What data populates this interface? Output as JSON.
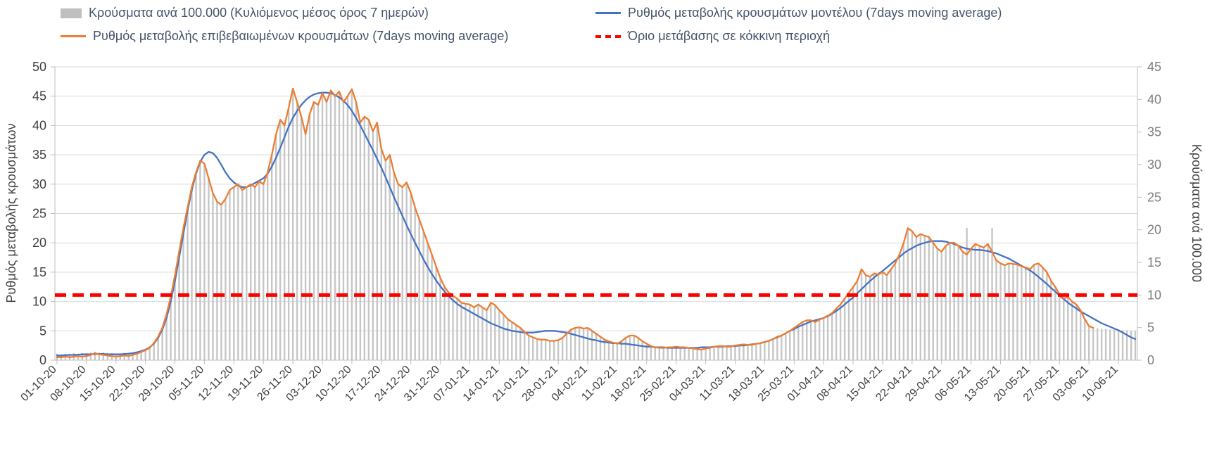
{
  "page": {
    "background": "#ffffff"
  },
  "legend": {
    "items": [
      {
        "label": "Κρούσματα ανά 100.000 (Κυλιόμενος μέσος όρος 7 ημερών)",
        "swatch": "bar",
        "color": "#bfbfbf"
      },
      {
        "label": "Ρυθμός μεταβολής κρουσμάτων μοντέλου (7days moving average)",
        "swatch": "line",
        "color": "#4472c4"
      },
      {
        "label": "Ρυθμός μεταβολής επιβεβαιωμένων κρουσμάτων (7days moving average)",
        "swatch": "line",
        "color": "#ed7d31"
      },
      {
        "label": "Όριο μετάβασης σε κόκκινη περιοχή",
        "swatch": "dashed-line",
        "color": "#ff0000"
      }
    ]
  },
  "chart_data": {
    "type": "combo",
    "grid": true,
    "legend_position": "top",
    "x_start_date": "01-10-20",
    "x_frequency": "daily",
    "x_tick_labels": [
      "01-10-20",
      "08-10-20",
      "15-10-20",
      "22-10-20",
      "29-10-20",
      "05-11-20",
      "12-11-20",
      "19-11-20",
      "26-11-20",
      "03-12-20",
      "10-12-20",
      "17-12-20",
      "24-12-20",
      "31-12-20",
      "07-01-21",
      "14-01-21",
      "21-01-21",
      "28-01-21",
      "04-02-21",
      "11-02-21",
      "18-02-21",
      "25-02-21",
      "04-03-21",
      "11-03-21",
      "18-03-21",
      "25-03-21",
      "01-04-21",
      "08-04-21",
      "15-04-21",
      "22-04-21",
      "29-04-21",
      "06-05-21",
      "13-05-21",
      "20-05-21",
      "27-05-21",
      "03-06-21",
      "10-06-21"
    ],
    "x_tick_day_step": 7,
    "left_axis": {
      "title": "Ρυθμός μεταβολής κρουσμάτων",
      "min": 0,
      "max": 50,
      "tick_step": 5,
      "tick_labels": [
        "0",
        "5",
        "10",
        "15",
        "20",
        "25",
        "30",
        "35",
        "40",
        "45",
        "50"
      ]
    },
    "right_axis": {
      "title": "Κρούσματα ανά 100.000",
      "min": 0,
      "max": 45,
      "tick_step": 5,
      "tick_labels": [
        "0",
        "5",
        "10",
        "15",
        "20",
        "25",
        "30",
        "35",
        "40",
        "45"
      ]
    },
    "threshold": {
      "name": "Όριο μετάβασης σε κόκκινη περιοχή",
      "axis": "right",
      "value": 10,
      "color": "#ff0000",
      "style": "dashed"
    },
    "series": [
      {
        "name": "Κρούσματα ανά 100.000 (Κυλιόμενος μέσος όρος 7 ημερών)",
        "type": "bar",
        "axis": "right",
        "color": "#c6c6c6",
        "values": [
          1.0,
          0.9,
          1.0,
          1.0,
          1.1,
          1.0,
          1.1,
          1.1,
          1.2,
          1.3,
          1.2,
          1.2,
          1.1,
          1.1,
          1.0,
          1.0,
          1.1,
          1.0,
          1.1,
          1.2,
          1.4,
          1.6,
          2.0,
          2.7,
          3.6,
          5.0,
          7.0,
          9.7,
          13.0,
          16.6,
          20.2,
          23.4,
          26.5,
          28.8,
          30.6,
          30.1,
          27.9,
          25.6,
          24.3,
          23.8,
          24.7,
          26.1,
          26.5,
          27.0,
          26.1,
          26.5,
          27.0,
          26.5,
          27.4,
          27.0,
          28.8,
          31.5,
          34.6,
          36.9,
          36.0,
          38.7,
          41.7,
          39.6,
          37.3,
          34.6,
          37.8,
          39.6,
          39.1,
          40.9,
          39.6,
          41.4,
          40.5,
          41.2,
          39.6,
          40.5,
          41.6,
          39.6,
          36.4,
          37.3,
          36.9,
          35.1,
          36.4,
          32.4,
          30.6,
          31.5,
          28.8,
          27.0,
          26.5,
          27.3,
          25.6,
          23.4,
          21.6,
          19.8,
          18.0,
          16.2,
          14.4,
          12.6,
          11.2,
          10.3,
          9.9,
          9.4,
          8.8,
          8.6,
          8.5,
          8.1,
          8.5,
          8.1,
          7.6,
          8.8,
          8.5,
          7.6,
          7.0,
          6.3,
          5.8,
          5.4,
          5.0,
          4.3,
          3.8,
          3.5,
          3.2,
          3.1,
          3.1,
          3.0,
          3.0,
          3.1,
          3.4,
          4.0,
          4.7,
          5.0,
          5.0,
          4.9,
          5.0,
          4.5,
          4.0,
          3.6,
          3.1,
          2.9,
          2.7,
          2.5,
          2.9,
          3.4,
          3.8,
          3.8,
          3.4,
          2.9,
          2.5,
          2.2,
          2.0,
          1.9,
          1.9,
          2.0,
          2.0,
          2.1,
          2.0,
          2.0,
          1.9,
          1.8,
          1.7,
          1.6,
          1.8,
          1.9,
          2.1,
          2.2,
          2.2,
          2.1,
          2.1,
          2.2,
          2.3,
          2.4,
          2.3,
          2.3,
          2.5,
          2.6,
          2.8,
          3.0,
          3.2,
          3.6,
          3.8,
          4.1,
          4.5,
          5.0,
          5.4,
          5.9,
          6.1,
          6.1,
          5.9,
          6.2,
          6.5,
          6.8,
          7.2,
          7.9,
          8.6,
          9.5,
          10.4,
          11.3,
          12.2,
          14.0,
          13.1,
          12.8,
          13.3,
          13.1,
          13.5,
          13.1,
          14.0,
          14.9,
          16.2,
          18.0,
          20.3,
          19.8,
          18.9,
          19.4,
          19.1,
          18.9,
          18.0,
          17.1,
          16.7,
          17.6,
          18.0,
          18.0,
          17.6,
          16.7,
          20.3,
          17.1,
          17.8,
          17.6,
          17.3,
          17.8,
          20.3,
          15.3,
          14.9,
          14.6,
          14.9,
          14.8,
          14.7,
          14.4,
          14.2,
          14.0,
          14.7,
          14.9,
          14.2,
          13.5,
          12.2,
          11.3,
          10.1,
          9.5,
          9.7,
          9.0,
          8.6,
          7.7,
          6.3,
          5.2,
          5.0,
          4.9,
          4.8,
          4.8,
          4.7,
          4.7,
          4.7,
          4.6,
          4.6,
          4.5,
          4.5
        ]
      },
      {
        "name": "Ρυθμός μεταβολής κρουσμάτων μοντέλου (7days moving average)",
        "type": "line",
        "axis": "left",
        "color": "#4472c4",
        "values": [
          0.8,
          0.8,
          0.85,
          0.9,
          0.9,
          0.95,
          1.0,
          1.0,
          1.0,
          1.05,
          1.05,
          1.05,
          1.0,
          1.0,
          1.0,
          1.0,
          1.05,
          1.1,
          1.2,
          1.35,
          1.55,
          1.8,
          2.2,
          2.8,
          3.8,
          5.2,
          7.2,
          10.0,
          13.5,
          17.5,
          21.5,
          25.5,
          29.0,
          31.8,
          33.8,
          35.0,
          35.5,
          35.3,
          34.5,
          33.3,
          32.0,
          31.0,
          30.3,
          29.8,
          29.5,
          29.5,
          29.8,
          30.2,
          30.6,
          31.0,
          31.8,
          33.0,
          34.5,
          36.2,
          38.0,
          39.8,
          41.3,
          42.5,
          43.5,
          44.3,
          44.9,
          45.3,
          45.5,
          45.6,
          45.6,
          45.5,
          45.2,
          44.8,
          44.2,
          43.5,
          42.5,
          41.3,
          40.0,
          38.6,
          37.2,
          35.8,
          34.3,
          32.8,
          31.2,
          29.5,
          27.8,
          26.2,
          24.6,
          23.0,
          21.5,
          20.0,
          18.6,
          17.2,
          15.9,
          14.7,
          13.6,
          12.6,
          11.7,
          10.9,
          10.2,
          9.6,
          9.1,
          8.7,
          8.3,
          7.9,
          7.5,
          7.1,
          6.7,
          6.3,
          6.0,
          5.7,
          5.4,
          5.2,
          5.0,
          4.9,
          4.8,
          4.7,
          4.7,
          4.7,
          4.8,
          4.9,
          5.0,
          5.0,
          5.0,
          4.9,
          4.8,
          4.7,
          4.5,
          4.3,
          4.1,
          3.9,
          3.7,
          3.5,
          3.4,
          3.2,
          3.1,
          3.0,
          2.9,
          2.9,
          2.8,
          2.8,
          2.7,
          2.6,
          2.5,
          2.4,
          2.3,
          2.3,
          2.2,
          2.2,
          2.2,
          2.1,
          2.1,
          2.1,
          2.1,
          2.1,
          2.1,
          2.1,
          2.1,
          2.2,
          2.2,
          2.2,
          2.3,
          2.3,
          2.3,
          2.4,
          2.4,
          2.4,
          2.5,
          2.5,
          2.6,
          2.7,
          2.8,
          2.9,
          3.1,
          3.3,
          3.6,
          3.9,
          4.2,
          4.6,
          5.0,
          5.3,
          5.7,
          6.0,
          6.3,
          6.6,
          6.8,
          7.0,
          7.2,
          7.5,
          7.9,
          8.4,
          8.9,
          9.5,
          10.1,
          10.7,
          11.4,
          12.1,
          12.8,
          13.5,
          14.1,
          14.7,
          15.2,
          15.8,
          16.4,
          17.0,
          17.6,
          18.2,
          18.7,
          19.1,
          19.5,
          19.8,
          20.0,
          20.2,
          20.3,
          20.3,
          20.3,
          20.2,
          20.0,
          19.8,
          19.5,
          19.2,
          19.0,
          18.9,
          18.8,
          18.8,
          18.7,
          18.6,
          18.4,
          18.2,
          17.9,
          17.6,
          17.3,
          16.9,
          16.5,
          16.1,
          15.7,
          15.3,
          14.8,
          14.2,
          13.6,
          13.0,
          12.3,
          11.7,
          11.0,
          10.4,
          9.8,
          9.3,
          8.8,
          8.3,
          7.9,
          7.5,
          7.1,
          6.7,
          6.3,
          6.0,
          5.7,
          5.4,
          5.1,
          4.7,
          4.3,
          3.9,
          3.6
        ]
      },
      {
        "name": "Ρυθμός μεταβολής επιβεβαιωμένων κρουσμάτων (7days moving average)",
        "type": "line",
        "axis": "left",
        "color": "#ed7d31",
        "values": [
          0.5,
          0.5,
          0.6,
          0.5,
          0.6,
          0.7,
          0.6,
          0.7,
          0.9,
          1.2,
          1.0,
          0.9,
          0.8,
          0.7,
          0.6,
          0.7,
          0.8,
          0.7,
          0.9,
          1.1,
          1.4,
          1.7,
          2.1,
          2.9,
          4.0,
          5.5,
          7.8,
          10.8,
          14.5,
          18.5,
          22.5,
          26.0,
          29.5,
          32.0,
          34.0,
          33.5,
          31.0,
          28.5,
          27.0,
          26.5,
          27.5,
          29.0,
          29.5,
          30.0,
          29.0,
          29.5,
          30.0,
          29.5,
          30.5,
          30.0,
          32.0,
          35.0,
          38.5,
          41.0,
          40.0,
          43.0,
          46.3,
          44.0,
          41.5,
          38.5,
          42.0,
          44.0,
          43.5,
          45.5,
          44.0,
          46.0,
          45.0,
          45.8,
          44.0,
          45.0,
          46.2,
          44.0,
          40.5,
          41.5,
          41.0,
          39.0,
          40.5,
          36.0,
          34.0,
          35.0,
          32.0,
          30.0,
          29.5,
          30.3,
          28.5,
          26.0,
          24.0,
          22.0,
          20.0,
          18.0,
          16.0,
          14.0,
          12.5,
          11.5,
          11.0,
          10.5,
          9.8,
          9.6,
          9.5,
          9.0,
          9.5,
          9.0,
          8.5,
          9.8,
          9.4,
          8.5,
          7.8,
          7.0,
          6.5,
          6.0,
          5.5,
          4.8,
          4.2,
          3.9,
          3.6,
          3.5,
          3.5,
          3.3,
          3.3,
          3.4,
          3.8,
          4.5,
          5.2,
          5.5,
          5.6,
          5.4,
          5.5,
          5.0,
          4.5,
          4.0,
          3.5,
          3.2,
          3.0,
          2.8,
          3.2,
          3.8,
          4.2,
          4.2,
          3.8,
          3.2,
          2.8,
          2.4,
          2.2,
          2.1,
          2.1,
          2.2,
          2.2,
          2.3,
          2.2,
          2.2,
          2.1,
          2.0,
          1.9,
          1.8,
          2.0,
          2.1,
          2.3,
          2.4,
          2.4,
          2.3,
          2.3,
          2.5,
          2.6,
          2.7,
          2.6,
          2.6,
          2.8,
          2.9,
          3.1,
          3.3,
          3.6,
          4.0,
          4.2,
          4.6,
          5.0,
          5.5,
          6.0,
          6.5,
          6.8,
          6.8,
          6.5,
          6.9,
          7.2,
          7.6,
          8.0,
          8.8,
          9.5,
          10.5,
          11.5,
          12.5,
          13.5,
          15.5,
          14.5,
          14.2,
          14.8,
          14.6,
          15.0,
          14.5,
          15.5,
          16.5,
          18.0,
          20.0,
          22.5,
          22.0,
          21.0,
          21.5,
          21.2,
          21.0,
          20.0,
          19.0,
          18.5,
          19.5,
          20.0,
          20.0,
          19.5,
          18.5,
          18.0,
          19.0,
          19.8,
          19.5,
          19.2,
          19.8,
          18.5,
          17.0,
          16.5,
          16.2,
          16.5,
          16.4,
          16.3,
          16.0,
          15.8,
          15.5,
          16.3,
          16.5,
          15.8,
          15.0,
          13.5,
          12.5,
          11.2,
          10.5,
          10.8,
          10.0,
          9.5,
          8.5,
          7.0,
          5.8,
          5.5,
          null,
          null,
          null,
          null,
          null,
          null,
          null,
          null,
          null,
          null
        ]
      }
    ]
  }
}
